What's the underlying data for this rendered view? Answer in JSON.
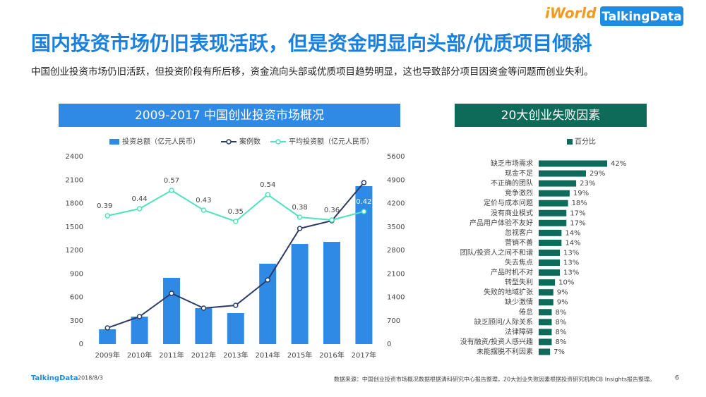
{
  "header": {
    "title": "国内投资市场仍旧表现活跃，但是资金明显向头部/优质项目倾斜",
    "subtitle": "中国创业投资市场仍旧活跃，但投资阶段有所后移，资金流向头部或优质项目趋势明显，这也导致部分项目因资金等问题而创业失利。",
    "logo_left": "iWorld",
    "logo_right": "TalkingData"
  },
  "footer": {
    "brand": "TalkingData",
    "date": "2018/8/3",
    "source": "数据来源：中国创业投资市场概况数据根据清科研究中心报告整理，20大创业失败因素根据投资研究机构CB Insights报告整理。",
    "page": "6"
  },
  "chart_data": [
    {
      "type": "bar",
      "title": "2009-2017  中国创业投资市场概况",
      "categories": [
        "2009年",
        "2010年",
        "2011年",
        "2012年",
        "2013年",
        "2014年",
        "2015年",
        "2016年",
        "2017年"
      ],
      "series": [
        {
          "name": "投资总额（亿元人民币）",
          "type": "bar",
          "color": "#2f8ae6",
          "values": [
            190,
            352,
            848,
            460,
            397,
            1029,
            1281,
            1308,
            2021
          ]
        },
        {
          "name": "案例数",
          "type": "line",
          "axis": "y2",
          "color": "#2b3a66",
          "values": [
            484,
            821,
            1516,
            1074,
            1158,
            1916,
            3453,
            3684,
            4821
          ]
        },
        {
          "name": "平均投资额（亿元人民币）",
          "type": "line",
          "axis": "hidden",
          "color": "#4fe3bd",
          "values": [
            0.39,
            0.44,
            0.57,
            0.43,
            0.35,
            0.54,
            0.38,
            0.36,
            0.42
          ]
        }
      ],
      "ylim": [
        0,
        2400
      ],
      "yticks": [
        0,
        300,
        600,
        900,
        1200,
        1500,
        1800,
        2100,
        2400
      ],
      "y2lim": [
        0,
        5600
      ],
      "y2ticks": [
        0,
        700,
        1400,
        2100,
        2800,
        3500,
        4200,
        4900,
        5600
      ],
      "legend": "top",
      "grid": false
    },
    {
      "type": "hbar",
      "title": "20大创业失败因素",
      "categories": [
        "缺乏市场需求",
        "现金不足",
        "不正确的团队",
        "竞争激烈",
        "定价与成本问题",
        "没有商业模式",
        "产品用户体验不友好",
        "忽视客户",
        "营销不善",
        "团队/投资人之间不和谐",
        "失去焦点",
        "产品时机不对",
        "转型失利",
        "失败的地域扩张",
        "缺少激情",
        "倦怠",
        "缺乏顾问/人际关系",
        "法律障碍",
        "没有融资/投资人感兴趣",
        "未能摆脱不利因素"
      ],
      "series": [
        {
          "name": "百分比",
          "color": "#0e6b5a",
          "values": [
            42,
            29,
            23,
            19,
            18,
            17,
            17,
            14,
            14,
            13,
            13,
            13,
            10,
            9,
            9,
            8,
            8,
            8,
            8,
            7
          ],
          "value_labels": [
            "42%",
            "29%",
            "23%",
            "19%",
            "18%",
            "17%",
            "17%",
            "14%",
            "14%",
            "13%",
            "13%",
            "13%",
            "10%",
            "9%",
            "9%",
            "8%",
            "8%",
            "8%",
            "8%",
            "7%"
          ]
        }
      ],
      "legend": "top"
    }
  ]
}
